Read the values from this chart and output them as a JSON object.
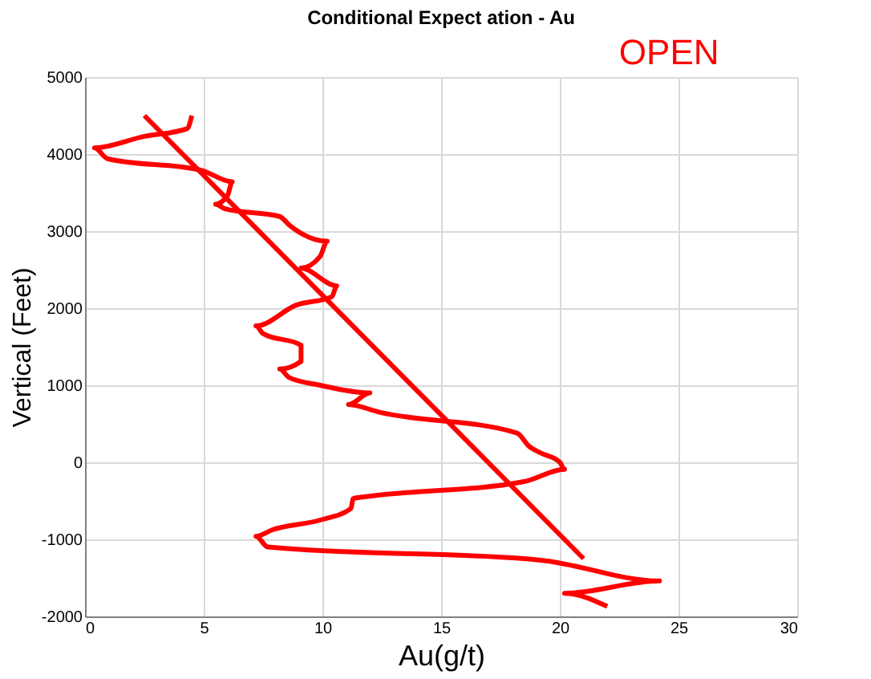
{
  "chart_data": {
    "type": "line",
    "title": "Conditional Expect ation - Au",
    "xlabel": "Au(g/t)",
    "ylabel": "Vertical (Feet)",
    "annotations": [
      "OPEN"
    ],
    "xlim": [
      0,
      30
    ],
    "xticks": [
      0,
      5,
      10,
      15,
      20,
      25,
      30
    ],
    "ylim": [
      -2000,
      5000
    ],
    "yticks": [
      -2000,
      -1000,
      0,
      1000,
      2000,
      3000,
      4000,
      5000
    ],
    "grid": true,
    "line_style": "solid",
    "series": [
      {
        "color": "#ff0000",
        "x": [
          4.5,
          4.3,
          2.5,
          0.4,
          0.95,
          4.9,
          6.2,
          6.0,
          5.5,
          5.9,
          8.2,
          8.6,
          10.2,
          9.9,
          9.1,
          10.6,
          10.4,
          8.9,
          7.2,
          7.5,
          9.1,
          9.1,
          8.2,
          8.6,
          9.9,
          12.0,
          11.1,
          12.4,
          18.2,
          18.7,
          19.2,
          20.0,
          20.2,
          18.5,
          12.0,
          11.3,
          11.2,
          9.9,
          7.9,
          7.2,
          7.7,
          19.2,
          24.2,
          20.2,
          22.0
        ],
        "values": [
          4500,
          4330,
          4230,
          4080,
          3940,
          3790,
          3640,
          3460,
          3350,
          3290,
          3190,
          3080,
          2870,
          2670,
          2520,
          2290,
          2150,
          2040,
          1770,
          1670,
          1520,
          1310,
          1210,
          1100,
          1000,
          900,
          750,
          650,
          380,
          210,
          120,
          0,
          -90,
          -250,
          -440,
          -470,
          -600,
          -750,
          -875,
          -960,
          -1100,
          -1270,
          -1540,
          -1700,
          -1870
        ]
      },
      {
        "color": "#ff0000",
        "x": [
          2.5,
          21.0
        ],
        "values": [
          4500,
          -1250
        ]
      }
    ]
  }
}
